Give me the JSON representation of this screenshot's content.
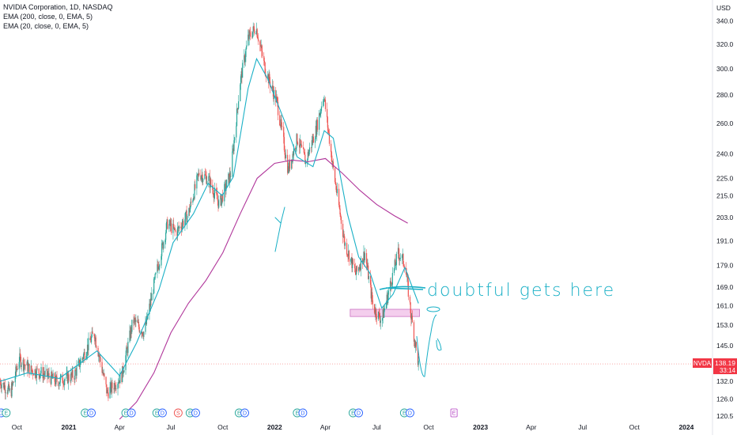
{
  "header": {
    "symbol_line": "NVIDIA Corporation, 1D, NASDAQ",
    "indicators": [
      "EMA (200, close, 0, EMA, 5)",
      "EMA (20, close, 0, EMA, 5)"
    ]
  },
  "price_axis": {
    "currency": "USD"
  },
  "last_price": {
    "symbol": "NVDA",
    "price": "138.19",
    "countdown": "33:14",
    "color": "#f23645"
  },
  "annotation": {
    "text": "doubtful gets here",
    "color": "#1ab0c6"
  },
  "chart_data": {
    "type": "candlestick",
    "y_scale": "log",
    "ylim": [
      119,
      352
    ],
    "yticks": [
      120.5,
      126.0,
      132.0,
      138.0,
      145.0,
      153.0,
      161.0,
      169.0,
      179.0,
      191.0,
      203.0,
      215.0,
      225.0,
      240.0,
      260.0,
      280.0,
      300.0,
      320.0,
      340.0
    ],
    "x_ticks": [
      {
        "label": "Oct",
        "x": "2020-10-01",
        "bold": false
      },
      {
        "label": "2021",
        "x": "2021-01-01",
        "bold": true
      },
      {
        "label": "Apr",
        "x": "2021-04-01",
        "bold": false
      },
      {
        "label": "Jul",
        "x": "2021-07-01",
        "bold": false
      },
      {
        "label": "Oct",
        "x": "2021-10-01",
        "bold": false
      },
      {
        "label": "2022",
        "x": "2022-01-01",
        "bold": true
      },
      {
        "label": "Apr",
        "x": "2022-04-01",
        "bold": false
      },
      {
        "label": "Jul",
        "x": "2022-07-01",
        "bold": false
      },
      {
        "label": "Oct",
        "x": "2022-10-01",
        "bold": false
      },
      {
        "label": "2023",
        "x": "2023-01-01",
        "bold": true
      },
      {
        "label": "Apr",
        "x": "2023-04-01",
        "bold": false
      },
      {
        "label": "Jul",
        "x": "2023-07-01",
        "bold": false
      },
      {
        "label": "Oct",
        "x": "2023-10-01",
        "bold": false
      },
      {
        "label": "2024",
        "x": "2024-01-01",
        "bold": true
      }
    ],
    "price_path": [
      [
        "2020-09-01",
        132
      ],
      [
        "2020-09-20",
        128
      ],
      [
        "2020-10-05",
        140
      ],
      [
        "2020-10-25",
        136
      ],
      [
        "2020-11-15",
        135
      ],
      [
        "2020-12-10",
        132
      ],
      [
        "2021-01-10",
        134
      ],
      [
        "2021-02-15",
        150
      ],
      [
        "2021-03-10",
        128
      ],
      [
        "2021-04-05",
        134
      ],
      [
        "2021-04-25",
        155
      ],
      [
        "2021-05-15",
        150
      ],
      [
        "2021-06-05",
        175
      ],
      [
        "2021-06-25",
        200
      ],
      [
        "2021-07-10",
        195
      ],
      [
        "2021-08-01",
        205
      ],
      [
        "2021-08-20",
        228
      ],
      [
        "2021-09-05",
        225
      ],
      [
        "2021-09-25",
        210
      ],
      [
        "2021-10-15",
        228
      ],
      [
        "2021-11-01",
        290
      ],
      [
        "2021-11-15",
        325
      ],
      [
        "2021-11-29",
        335
      ],
      [
        "2021-12-15",
        300
      ],
      [
        "2022-01-05",
        275
      ],
      [
        "2022-01-25",
        230
      ],
      [
        "2022-02-10",
        250
      ],
      [
        "2022-02-25",
        235
      ],
      [
        "2022-03-15",
        255
      ],
      [
        "2022-03-29",
        280
      ],
      [
        "2022-04-15",
        230
      ],
      [
        "2022-05-05",
        190
      ],
      [
        "2022-05-25",
        175
      ],
      [
        "2022-06-10",
        185
      ],
      [
        "2022-06-25",
        160
      ],
      [
        "2022-07-10",
        155
      ],
      [
        "2022-07-25",
        170
      ],
      [
        "2022-08-08",
        185
      ],
      [
        "2022-08-20",
        180
      ],
      [
        "2022-09-01",
        155
      ],
      [
        "2022-09-13",
        138
      ]
    ],
    "ema20": [
      [
        "2020-09-01",
        132
      ],
      [
        "2020-10-20",
        135
      ],
      [
        "2020-12-15",
        133
      ],
      [
        "2021-02-20",
        143
      ],
      [
        "2021-04-01",
        134
      ],
      [
        "2021-05-01",
        146
      ],
      [
        "2021-06-10",
        168
      ],
      [
        "2021-07-05",
        190
      ],
      [
        "2021-08-10",
        205
      ],
      [
        "2021-09-05",
        222
      ],
      [
        "2021-09-30",
        215
      ],
      [
        "2021-10-20",
        226
      ],
      [
        "2021-11-15",
        285
      ],
      [
        "2021-11-30",
        308
      ],
      [
        "2021-12-20",
        292
      ],
      [
        "2022-01-20",
        260
      ],
      [
        "2022-02-10",
        238
      ],
      [
        "2022-03-10",
        232
      ],
      [
        "2022-03-30",
        255
      ],
      [
        "2022-04-15",
        250
      ],
      [
        "2022-05-10",
        205
      ],
      [
        "2022-05-30",
        183
      ],
      [
        "2022-06-20",
        175
      ],
      [
        "2022-07-10",
        160
      ],
      [
        "2022-07-30",
        166
      ],
      [
        "2022-08-20",
        178
      ],
      [
        "2022-09-13",
        162
      ]
    ],
    "ema200": [
      [
        "2021-04-01",
        119.5
      ],
      [
        "2021-05-01",
        125
      ],
      [
        "2021-06-01",
        135
      ],
      [
        "2021-07-01",
        150
      ],
      [
        "2021-08-01",
        162
      ],
      [
        "2021-09-01",
        172
      ],
      [
        "2021-10-01",
        185
      ],
      [
        "2021-11-01",
        205
      ],
      [
        "2021-12-01",
        225
      ],
      [
        "2022-01-01",
        234
      ],
      [
        "2022-02-01",
        236
      ],
      [
        "2022-03-01",
        235
      ],
      [
        "2022-04-01",
        237
      ],
      [
        "2022-05-01",
        228
      ],
      [
        "2022-06-01",
        218
      ],
      [
        "2022-07-01",
        210
      ],
      [
        "2022-08-01",
        204
      ],
      [
        "2022-08-25",
        200
      ]
    ],
    "support_zone": {
      "x_start": "2022-05-15",
      "x_end": "2022-09-15",
      "y_low": 156.5,
      "y_high": 159.5
    },
    "current_price": 138.19,
    "events": [
      {
        "x": "2020-09-03",
        "label": "D"
      },
      {
        "x": "2020-09-12",
        "label": "E"
      },
      {
        "x": "2021-01-30",
        "label": "E"
      },
      {
        "x": "2021-02-10",
        "label": "D"
      },
      {
        "x": "2021-04-12",
        "label": "E"
      },
      {
        "x": "2021-04-22",
        "label": "D"
      },
      {
        "x": "2021-06-06",
        "label": "E"
      },
      {
        "x": "2021-06-16",
        "label": "D"
      },
      {
        "x": "2021-07-14",
        "label": "S"
      },
      {
        "x": "2021-08-04",
        "label": "E"
      },
      {
        "x": "2021-08-14",
        "label": "D"
      },
      {
        "x": "2021-10-30",
        "label": "E"
      },
      {
        "x": "2021-11-09",
        "label": "D"
      },
      {
        "x": "2022-02-10",
        "label": "E"
      },
      {
        "x": "2022-02-20",
        "label": "D"
      },
      {
        "x": "2022-05-20",
        "label": "E"
      },
      {
        "x": "2022-05-30",
        "label": "D"
      },
      {
        "x": "2022-08-19",
        "label": "E"
      },
      {
        "x": "2022-08-29",
        "label": "D"
      },
      {
        "x": "2022-11-15",
        "label": "E"
      }
    ]
  },
  "colors": {
    "up": "#26a69a",
    "down": "#ef5350",
    "ema20": "#1ab0c6",
    "ema200": "#b0359a",
    "zone_fill": "#f3c6ea",
    "zone_stroke": "#c35ab8",
    "dividend_event": "#2962ff",
    "earnings_event": "#26a69a",
    "split_event": "#ef5350",
    "future_event": "#b23dc2"
  }
}
